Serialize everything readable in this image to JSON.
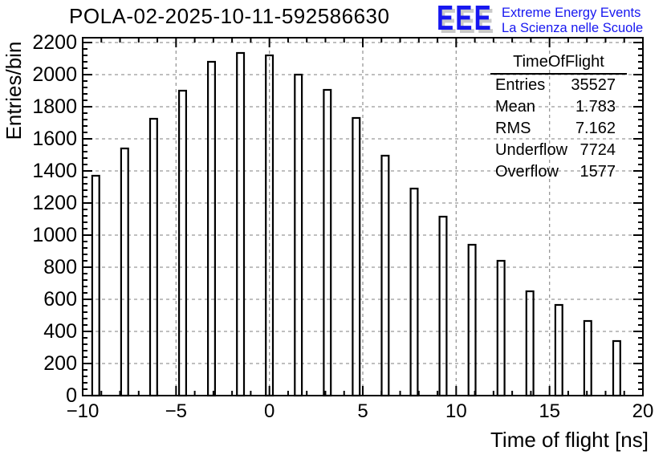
{
  "header": {
    "title": "POLA-02-2025-10-11-592586630",
    "logo": {
      "acronym": "EEE",
      "line1": "Extreme Energy Events",
      "line2": "La Scienza nelle Scuole",
      "blue": "#1717f0",
      "shadow": "#c9c9c9"
    }
  },
  "stats": {
    "header": "TimeOfFlight",
    "rows": [
      {
        "label": "Entries",
        "value": "35527"
      },
      {
        "label": "Mean",
        "value": "1.783"
      },
      {
        "label": "RMS",
        "value": "7.162"
      },
      {
        "label": "Underflow",
        "value": "7724"
      },
      {
        "label": "Overflow",
        "value": "1577"
      }
    ]
  },
  "chart_data": {
    "type": "bar",
    "title": "POLA-02-2025-10-11-592586630",
    "xlabel": "Time of flight [ns]",
    "ylabel": "Entries/bin",
    "xlim": [
      -10,
      20
    ],
    "ylim": [
      0,
      2230
    ],
    "x_major_ticks": [
      -10,
      -5,
      0,
      5,
      10,
      15,
      20
    ],
    "x_minor_step": 1,
    "y_major_ticks": [
      0,
      200,
      400,
      600,
      800,
      1000,
      1200,
      1400,
      1600,
      1800,
      2000,
      2200
    ],
    "y_minor_step": 40,
    "grid": true,
    "grid_style": "dashed",
    "legend_position": "none",
    "bar_width_ns": 0.38,
    "bar_fill": "none",
    "bar_stroke": "#000000",
    "grid_color": "#999999",
    "x": [
      -9.3,
      -7.75,
      -6.2,
      -4.65,
      -3.1,
      -1.55,
      0.0,
      1.55,
      3.1,
      4.65,
      6.2,
      7.75,
      9.3,
      10.85,
      12.4,
      13.95,
      15.5,
      17.05,
      18.6
    ],
    "values": [
      1370,
      1540,
      1725,
      1900,
      2080,
      2135,
      2120,
      2000,
      1905,
      1730,
      1495,
      1290,
      1115,
      940,
      840,
      650,
      565,
      465,
      340
    ]
  }
}
